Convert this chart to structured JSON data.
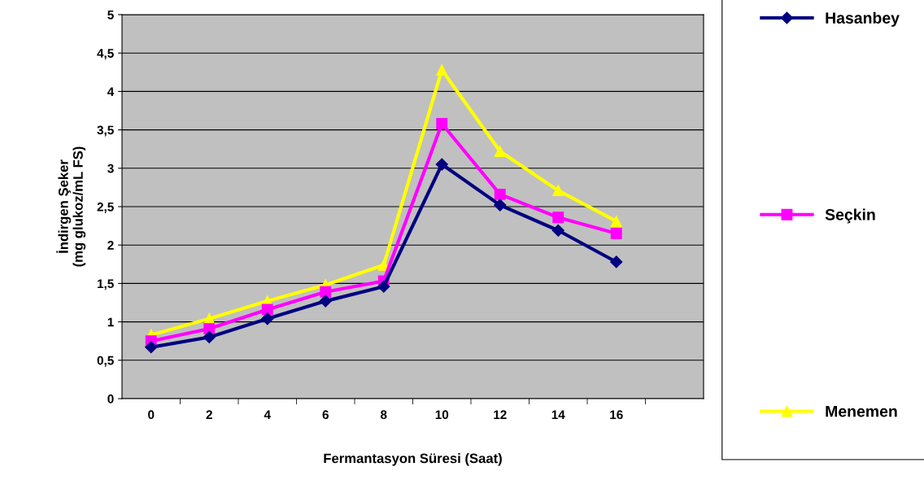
{
  "chart_data": {
    "type": "line",
    "xlabel": "Fermantasyon Süresi (Saat)",
    "ylabel": "İndirgen Şeker\n(mg glukoz/mL FS)",
    "categories": [
      "0",
      "2",
      "4",
      "6",
      "8",
      "10",
      "12",
      "14",
      "16",
      null
    ],
    "series": [
      {
        "name": "Hasanbey",
        "color": "#000080",
        "marker": "diamond",
        "values": [
          0.67,
          0.8,
          1.04,
          1.27,
          1.46,
          3.05,
          2.52,
          2.19,
          1.78,
          null
        ]
      },
      {
        "name": "Seçkin",
        "color": "#ff00ff",
        "marker": "square",
        "values": [
          0.75,
          0.91,
          1.16,
          1.39,
          1.53,
          3.58,
          2.66,
          2.36,
          2.15,
          null
        ]
      },
      {
        "name": "Menemen",
        "color": "#ffff00",
        "marker": "triangle",
        "values": [
          0.83,
          1.04,
          1.27,
          1.48,
          1.74,
          4.28,
          3.22,
          2.71,
          2.31,
          null
        ]
      }
    ],
    "ylim": [
      0,
      5
    ],
    "yticks": [
      0,
      {
        "value": 0.5,
        "label": "0,5"
      },
      1,
      {
        "value": 1.5,
        "label": "1,5"
      },
      2,
      {
        "value": 2.5,
        "label": "2,5"
      },
      3,
      {
        "value": 3.5,
        "label": "3,5"
      },
      4,
      {
        "value": 4.5,
        "label": "4,5"
      },
      5
    ],
    "grid": "y",
    "legend": "right"
  }
}
